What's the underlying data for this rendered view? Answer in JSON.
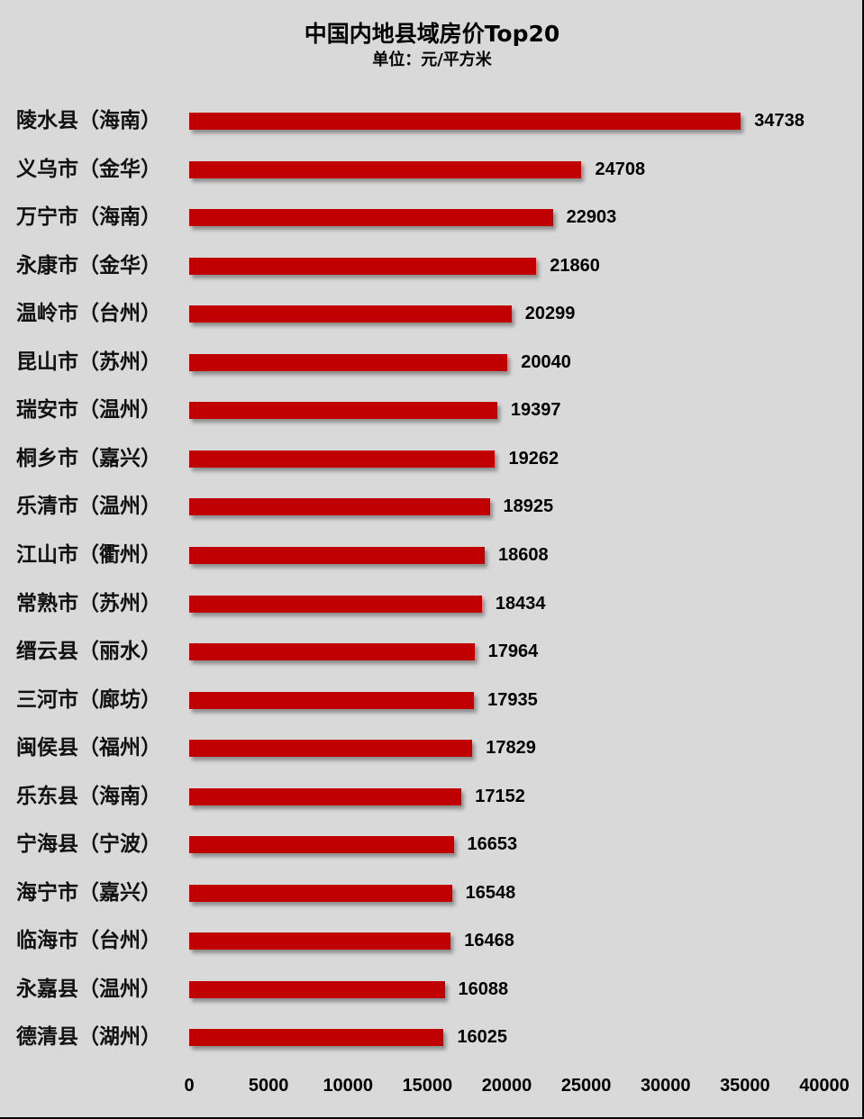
{
  "chart_data": {
    "type": "bar",
    "orientation": "horizontal",
    "title": "中国内地县域房价Top20",
    "subtitle": "单位：元/平方米",
    "xlabel": "",
    "ylabel": "",
    "xlim": [
      0,
      40000
    ],
    "grid": false,
    "legend": null,
    "bar_color": "#c00000",
    "background": "#d9d9d9",
    "categories": [
      "陵水县（海南）",
      "义乌市（金华）",
      "万宁市（海南）",
      "永康市（金华）",
      "温岭市（台州）",
      "昆山市（苏州）",
      "瑞安市（温州）",
      "桐乡市（嘉兴）",
      "乐清市（温州）",
      "江山市（衢州）",
      "常熟市（苏州）",
      "缙云县（丽水）",
      "三河市（廊坊）",
      "闽侯县（福州）",
      "乐东县（海南）",
      "宁海县（宁波）",
      "海宁市（嘉兴）",
      "临海市（台州）",
      "永嘉县（温州）",
      "德清县（湖州）"
    ],
    "values": [
      34738,
      24708,
      22903,
      21860,
      20299,
      20040,
      19397,
      19262,
      18925,
      18608,
      18434,
      17964,
      17935,
      17829,
      17152,
      16653,
      16548,
      16468,
      16088,
      16025
    ],
    "x_ticks": [
      "0",
      "5000",
      "10000",
      "15000",
      "20000",
      "25000",
      "30000",
      "35000",
      "40000"
    ]
  }
}
